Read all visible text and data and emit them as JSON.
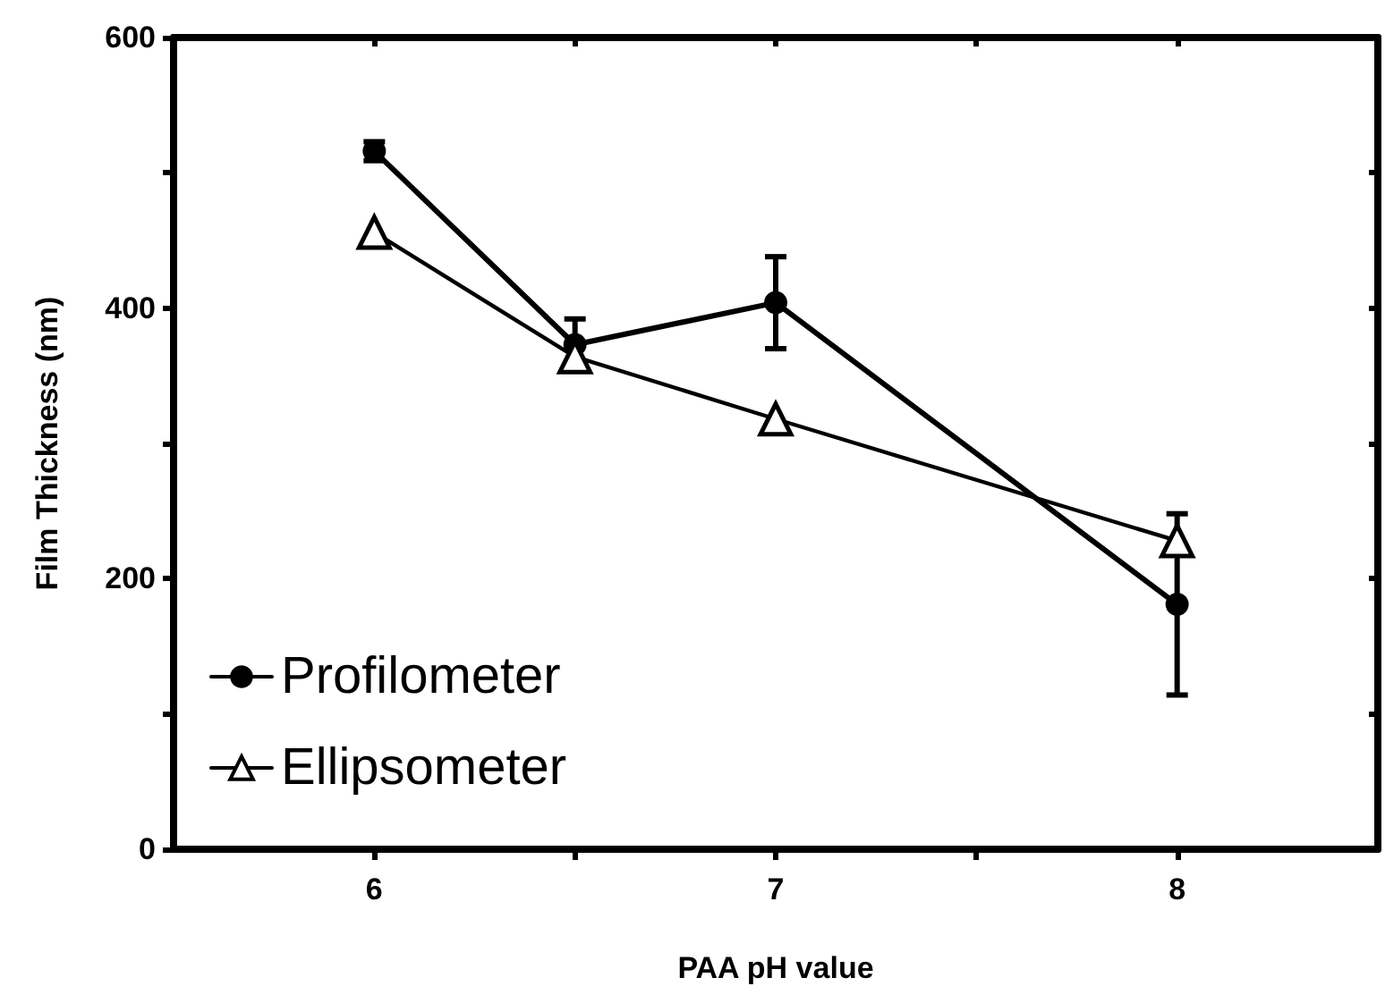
{
  "chart_data": {
    "type": "line",
    "xlabel": "PAA pH value",
    "ylabel": "Film Thickness (nm)",
    "xlim": [
      5.5,
      8.5
    ],
    "xticks": [
      6,
      {
        "value": 6.5,
        "label": null
      },
      7,
      {
        "value": 7.5,
        "label": null
      },
      8
    ],
    "ylim": [
      0,
      600
    ],
    "yticks": [
      0,
      {
        "value": 100,
        "label": null
      },
      200,
      {
        "value": 300,
        "label": null
      },
      400,
      {
        "value": 500,
        "label": null
      },
      600
    ],
    "x": [
      6,
      6.5,
      7,
      8
    ],
    "series": [
      {
        "name": "Profilometer",
        "color": "#000000",
        "marker": "circle",
        "values": [
          516,
          373,
          404,
          181
        ],
        "errors": [
          7,
          19,
          34,
          67
        ]
      },
      {
        "name": "Ellipsometer",
        "color": "#000000",
        "marker": "triangle",
        "values": [
          456,
          364,
          318,
          228
        ]
      }
    ],
    "legend": "bottom left",
    "grid": false,
    "line_style": "solid"
  }
}
